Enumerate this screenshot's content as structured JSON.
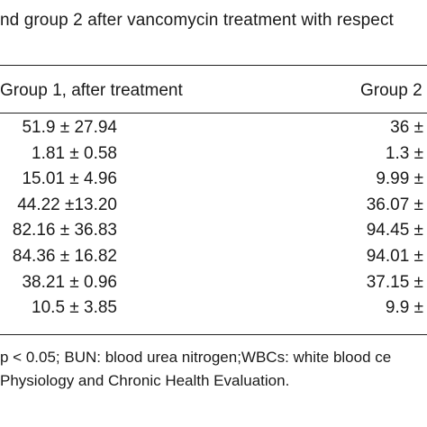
{
  "caption": "nd group 2 after vancomycin treatment with respect",
  "table": {
    "headers": [
      "Group 1, after treatment",
      "Group 2"
    ],
    "rows": [
      {
        "group1": "51.9 ± 27.94",
        "group2": "36 ±"
      },
      {
        "group1": "1.81 ± 0.58",
        "group2": "1.3 ±"
      },
      {
        "group1": "15.01 ± 4.96",
        "group2": "9.99 ±"
      },
      {
        "group1": "44.22 ±13.20",
        "group2": "36.07 ±"
      },
      {
        "group1": "82.16 ± 36.83",
        "group2": "94.45 ±"
      },
      {
        "group1": "84.36 ± 16.82",
        "group2": "94.01 ±"
      },
      {
        "group1": "38.21 ± 0.96",
        "group2": "37.15 ±"
      },
      {
        "group1": "10.5 ± 3.85",
        "group2": "9.9 ±"
      }
    ]
  },
  "footnotes": [
    "p < 0.05; BUN: blood urea nitrogen;WBCs: white blood ce",
    "Physiology and Chronic Health Evaluation."
  ]
}
